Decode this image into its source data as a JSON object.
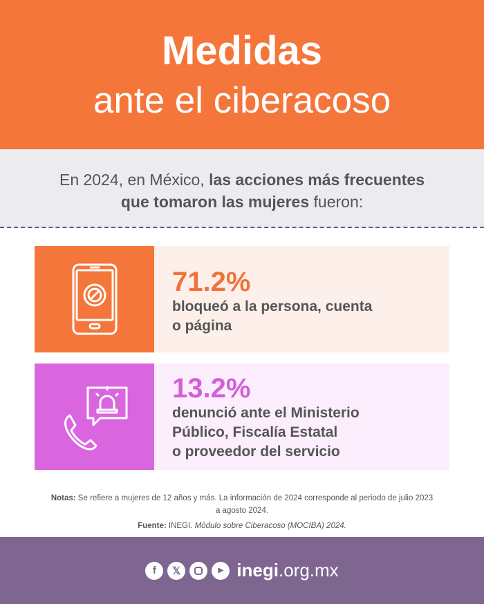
{
  "header": {
    "title_line1": "Medidas",
    "title_line2": "ante el ciberacoso"
  },
  "intro": {
    "part1": "En 2024, en México, ",
    "bold1": "las acciones más frecuentes",
    "bold2": "que tomaron las mujeres",
    "part2": " fueron:"
  },
  "cards": [
    {
      "icon": "blocked-phone-icon",
      "percent": "71.2%",
      "line1": "bloqueó a la persona, cuenta",
      "line2": "o página",
      "accent": "#F5763A",
      "bg": "#FDF0EB"
    },
    {
      "icon": "phone-alarm-icon",
      "percent": "13.2%",
      "line1": "denunció ante el Ministerio",
      "line2": "Público, Fiscalía Estatal",
      "line3": "o proveedor del servicio",
      "accent": "#D966DF",
      "bg": "#FCEEFC"
    }
  ],
  "notes": {
    "label": "Notas:",
    "text": " Se refiere a mujeres de 12 años y más. La información de 2024 corresponde al periodo de julio 2023 a agosto 2024.",
    "source_label": "Fuente:",
    "source_plain": " INEGI. ",
    "source_italic": "Módulo sobre Ciberacoso (MOCIBA) 2024."
  },
  "footer": {
    "icons": [
      "facebook-icon",
      "x-icon",
      "instagram-icon",
      "youtube-icon"
    ],
    "site_bold": "inegi",
    "site_rest": ".org.mx"
  }
}
